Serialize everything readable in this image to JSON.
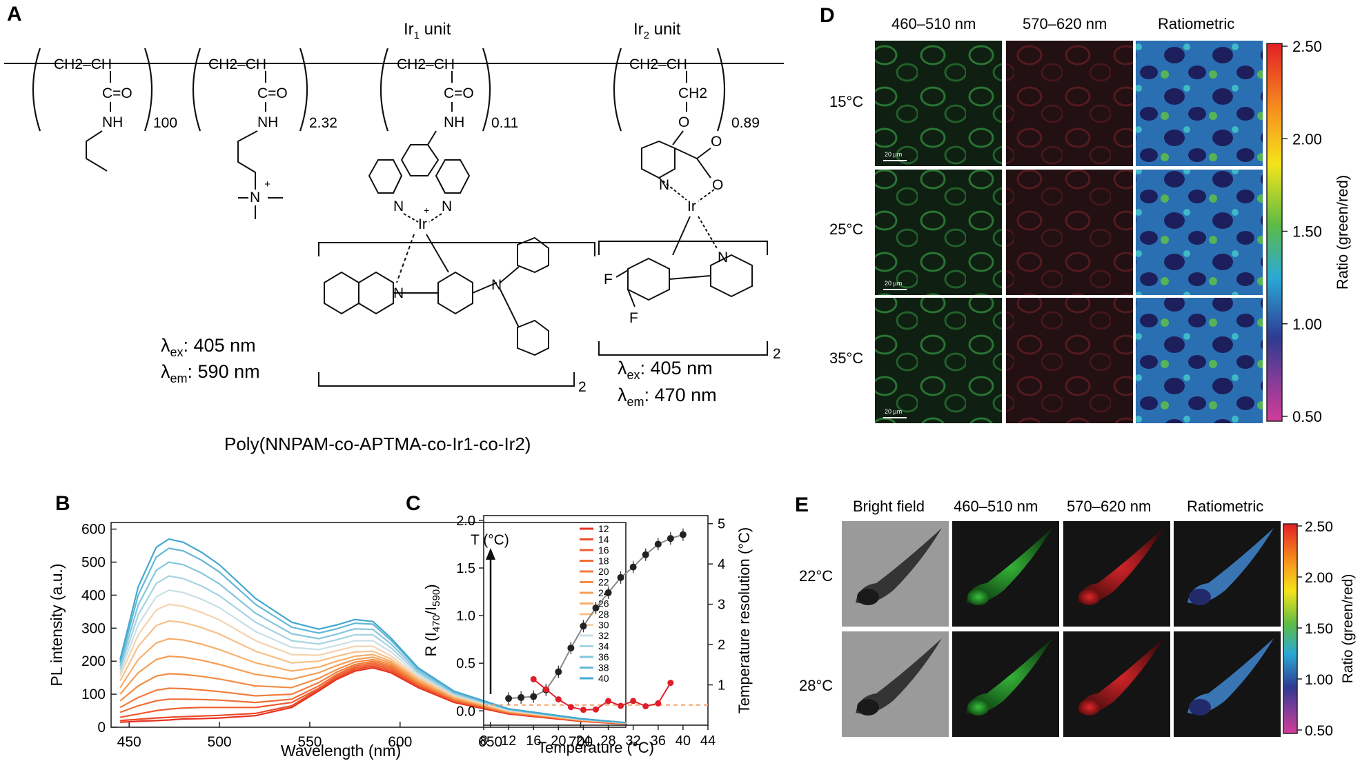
{
  "panel_a": {
    "label": "A",
    "ir1_label": "Ir",
    "ir1_sub": "1",
    "ir1_suffix": " unit",
    "ir2_label": "Ir",
    "ir2_sub": "2",
    "ir2_suffix": " unit",
    "units": [
      {
        "backbone": "CH2–CH",
        "pendant": [
          "C=O",
          "NH"
        ],
        "subscript": "100"
      },
      {
        "backbone": "CH2–CH",
        "pendant": [
          "C=O",
          "NH"
        ],
        "subscript": "2.32"
      },
      {
        "backbone": "CH2–CH",
        "pendant": [
          "C=O",
          "NH"
        ],
        "subscript": "0.11"
      },
      {
        "backbone": "CH2–CH",
        "pendant": [
          "CH2",
          "O"
        ],
        "subscript": "0.89"
      }
    ],
    "atoms": {
      "n": "N",
      "ir": "Ir",
      "o": "O",
      "f": "F",
      "nme3": "N",
      "plus": "+"
    },
    "ir1_bracket_sub": "2",
    "ir2_bracket_sub": "2",
    "ir1_ex": "405 nm",
    "ir1_em": "590 nm",
    "ir2_ex": "405 nm",
    "ir2_em": "470 nm",
    "lambda": "λ",
    "ex": "ex",
    "em": "em",
    "polymer_name": "Poly(NNPAM-co-APTMA-co-Ir1-co-Ir2)"
  },
  "panel_d": {
    "label": "D",
    "col_headers": [
      "460–510 nm",
      "570–620 nm",
      "Ratiometric"
    ],
    "row_labels": [
      "15°C",
      "25°C",
      "35°C"
    ],
    "scale_bar": "20 µm",
    "colorbar_ticks": [
      "2.50",
      "2.00",
      "1.50",
      "1.00",
      "0.50"
    ],
    "colorbar_label": "Ratio (green/red)"
  },
  "panel_e": {
    "label": "E",
    "col_headers": [
      "Bright field",
      "460–510 nm",
      "570–620 nm",
      "Ratiometric"
    ],
    "row_labels": [
      "22°C",
      "28°C"
    ],
    "colorbar_ticks": [
      "2.50",
      "2.00",
      "1.50",
      "1.00",
      "0.50"
    ],
    "colorbar_label": "Ratio (green/red)"
  },
  "colors": {
    "green_channel": "#2e8b3a",
    "red_channel": "#b3202a",
    "error_red": "#e01e2a",
    "data_black": "#222222"
  },
  "chart_data": [
    {
      "panel": "B",
      "type": "line",
      "xlabel": "Wavelength (nm)",
      "ylabel": "PL intensity (a.u.)",
      "xlim": [
        440,
        725
      ],
      "ylim": [
        0,
        620
      ],
      "xticks": [
        450,
        500,
        550,
        600,
        650,
        700
      ],
      "yticks": [
        0,
        100,
        200,
        300,
        400,
        500,
        600
      ],
      "annotation": "T (°C)",
      "legend_position": "right",
      "series": [
        {
          "name": "12",
          "color": "#e8321e",
          "x": [
            445,
            455,
            465,
            472,
            480,
            490,
            500,
            520,
            540,
            555,
            565,
            575,
            585,
            595,
            610,
            630,
            660,
            700,
            725
          ],
          "y": [
            15,
            18,
            20,
            22,
            25,
            26,
            28,
            35,
            60,
            110,
            145,
            170,
            180,
            165,
            120,
            75,
            40,
            18,
            10
          ]
        },
        {
          "name": "14",
          "color": "#ec4a28",
          "x": [
            445,
            455,
            465,
            472,
            480,
            490,
            500,
            520,
            540,
            555,
            565,
            575,
            585,
            595,
            610,
            630,
            660,
            700,
            725
          ],
          "y": [
            20,
            24,
            28,
            30,
            32,
            34,
            36,
            42,
            65,
            115,
            150,
            175,
            185,
            170,
            125,
            78,
            42,
            19,
            11
          ]
        },
        {
          "name": "16",
          "color": "#ef5b2e",
          "x": [
            445,
            455,
            465,
            472,
            480,
            490,
            500,
            520,
            540,
            555,
            565,
            575,
            585,
            595,
            610,
            630,
            660,
            700,
            725
          ],
          "y": [
            30,
            40,
            50,
            55,
            58,
            60,
            60,
            60,
            75,
            118,
            155,
            180,
            190,
            175,
            128,
            80,
            43,
            20,
            11
          ]
        },
        {
          "name": "18",
          "color": "#f06c34",
          "x": [
            445,
            455,
            465,
            472,
            480,
            490,
            500,
            520,
            540,
            555,
            565,
            575,
            585,
            595,
            610,
            630,
            660,
            700,
            725
          ],
          "y": [
            45,
            65,
            80,
            85,
            85,
            84,
            82,
            75,
            85,
            125,
            160,
            185,
            195,
            180,
            130,
            82,
            44,
            20,
            11
          ]
        },
        {
          "name": "20",
          "color": "#f27c3c",
          "x": [
            445,
            455,
            465,
            472,
            480,
            490,
            500,
            520,
            540,
            555,
            565,
            575,
            585,
            595,
            610,
            630,
            660,
            700,
            725
          ],
          "y": [
            60,
            90,
            112,
            118,
            117,
            113,
            108,
            95,
            100,
            135,
            167,
            190,
            200,
            185,
            133,
            84,
            45,
            21,
            12
          ]
        },
        {
          "name": "22",
          "color": "#f48d46",
          "x": [
            445,
            455,
            465,
            472,
            480,
            490,
            500,
            520,
            540,
            555,
            565,
            575,
            585,
            595,
            610,
            630,
            660,
            700,
            725
          ],
          "y": [
            80,
            125,
            155,
            162,
            160,
            154,
            146,
            125,
            120,
            148,
            175,
            197,
            205,
            190,
            137,
            86,
            46,
            21,
            12
          ]
        },
        {
          "name": "24",
          "color": "#f69d54",
          "x": [
            445,
            455,
            465,
            472,
            480,
            490,
            500,
            520,
            540,
            555,
            565,
            575,
            585,
            595,
            610,
            630,
            660,
            700,
            725
          ],
          "y": [
            100,
            165,
            205,
            215,
            212,
            203,
            190,
            160,
            145,
            165,
            187,
            205,
            212,
            195,
            140,
            88,
            47,
            22,
            12
          ]
        },
        {
          "name": "26",
          "color": "#f7ae68",
          "x": [
            445,
            455,
            465,
            472,
            480,
            490,
            500,
            520,
            540,
            555,
            565,
            575,
            585,
            595,
            610,
            630,
            660,
            700,
            725
          ],
          "y": [
            120,
            205,
            255,
            268,
            264,
            252,
            235,
            195,
            170,
            182,
            200,
            215,
            220,
            200,
            143,
            90,
            48,
            22,
            12
          ]
        },
        {
          "name": "28",
          "color": "#f8c088",
          "x": [
            445,
            455,
            465,
            472,
            480,
            490,
            500,
            520,
            540,
            555,
            565,
            575,
            585,
            595,
            610,
            630,
            660,
            700,
            725
          ],
          "y": [
            140,
            245,
            308,
            322,
            317,
            302,
            282,
            230,
            195,
            200,
            215,
            228,
            230,
            207,
            147,
            92,
            49,
            23,
            13
          ]
        },
        {
          "name": "30",
          "color": "#f5d2ae",
          "x": [
            445,
            455,
            465,
            472,
            480,
            490,
            500,
            520,
            540,
            555,
            565,
            575,
            585,
            595,
            610,
            630,
            660,
            700,
            725
          ],
          "y": [
            155,
            280,
            355,
            372,
            366,
            348,
            325,
            262,
            220,
            218,
            232,
            245,
            245,
            216,
            152,
            95,
            50,
            23,
            13
          ]
        },
        {
          "name": "32",
          "color": "#c8dfe6",
          "x": [
            445,
            455,
            465,
            472,
            480,
            490,
            500,
            520,
            540,
            555,
            565,
            575,
            585,
            595,
            610,
            630,
            660,
            700,
            725
          ],
          "y": [
            165,
            310,
            395,
            415,
            408,
            388,
            362,
            290,
            242,
            235,
            248,
            262,
            262,
            228,
            158,
            98,
            52,
            24,
            13
          ]
        },
        {
          "name": "34",
          "color": "#a4d3e2",
          "x": [
            445,
            455,
            465,
            472,
            480,
            490,
            500,
            520,
            540,
            555,
            565,
            575,
            585,
            595,
            610,
            630,
            660,
            700,
            725
          ],
          "y": [
            175,
            340,
            435,
            458,
            450,
            428,
            398,
            318,
            262,
            252,
            265,
            280,
            280,
            240,
            164,
            101,
            53,
            24,
            14
          ]
        },
        {
          "name": "36",
          "color": "#82c5dc",
          "x": [
            445,
            455,
            465,
            472,
            480,
            490,
            500,
            520,
            540,
            555,
            565,
            575,
            585,
            595,
            610,
            630,
            660,
            700,
            725
          ],
          "y": [
            185,
            370,
            475,
            500,
            492,
            467,
            434,
            345,
            283,
            268,
            282,
            298,
            296,
            252,
            170,
            104,
            54,
            25,
            14
          ]
        },
        {
          "name": "38",
          "color": "#62b7d6",
          "x": [
            445,
            455,
            465,
            472,
            480,
            490,
            500,
            520,
            540,
            555,
            565,
            575,
            585,
            595,
            610,
            630,
            660,
            700,
            725
          ],
          "y": [
            195,
            400,
            515,
            542,
            534,
            506,
            470,
            372,
            303,
            285,
            298,
            315,
            312,
            263,
            176,
            107,
            55,
            25,
            14
          ]
        },
        {
          "name": "40",
          "color": "#43a8cf",
          "x": [
            445,
            455,
            465,
            472,
            480,
            490,
            500,
            520,
            540,
            555,
            565,
            575,
            585,
            595,
            610,
            630,
            660,
            700,
            725
          ],
          "y": [
            205,
            425,
            545,
            570,
            560,
            530,
            492,
            390,
            318,
            297,
            310,
            326,
            320,
            270,
            180,
            109,
            56,
            26,
            14
          ]
        }
      ]
    },
    {
      "panel": "C",
      "type": "scatter",
      "xlabel": "Temperature (°C)",
      "ylabel": "R (I470/I590)",
      "y2label": "Temperature resolution (°C)",
      "xlim": [
        8,
        44
      ],
      "ylim": [
        -0.15,
        2.05
      ],
      "y2lim": [
        0,
        5.2
      ],
      "xticks": [
        8,
        12,
        16,
        20,
        24,
        28,
        32,
        36,
        40,
        44
      ],
      "yticks": [
        0.0,
        0.5,
        1.0,
        1.5,
        2.0
      ],
      "y2ticks": [
        1,
        2,
        3,
        4,
        5
      ],
      "grid": false,
      "series": [
        {
          "name": "R",
          "axis": "left",
          "color": "#222222",
          "x": [
            12,
            14,
            16,
            18,
            20,
            22,
            24,
            26,
            28,
            30,
            32,
            34,
            36,
            38,
            40
          ],
          "y": [
            0.13,
            0.14,
            0.15,
            0.22,
            0.41,
            0.66,
            0.89,
            1.08,
            1.24,
            1.4,
            1.51,
            1.64,
            1.75,
            1.81,
            1.85
          ]
        },
        {
          "name": "Resolution",
          "axis": "right",
          "color": "#e01e2a",
          "x": [
            16,
            18,
            20,
            22,
            24,
            26,
            28,
            30,
            32,
            34,
            36,
            38
          ],
          "y": [
            1.14,
            0.89,
            0.64,
            0.45,
            0.38,
            0.39,
            0.6,
            0.48,
            0.6,
            0.47,
            0.54,
            1.05
          ]
        }
      ],
      "reference_line": {
        "axis": "right",
        "value": 0.5
      }
    }
  ]
}
